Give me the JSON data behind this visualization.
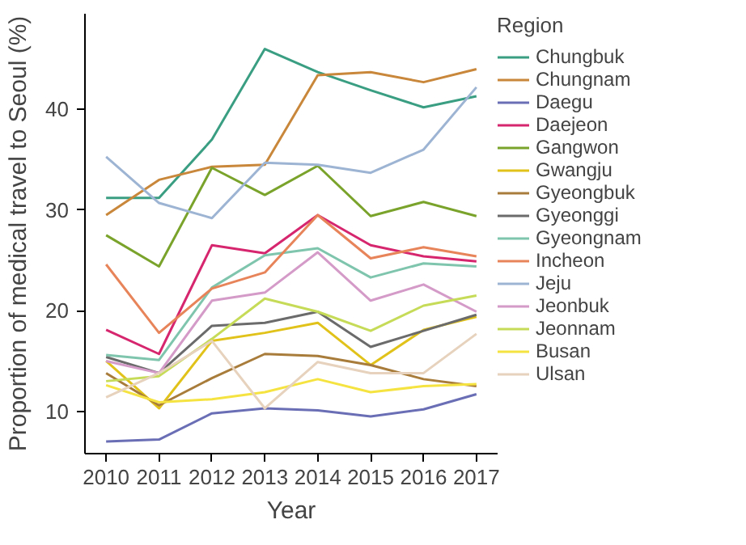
{
  "chart_data": {
    "type": "line",
    "xlabel": "Year",
    "ylabel": "Proportion of medical travel to Seoul (%)",
    "legend_title": "Region",
    "legend": "right",
    "grid": false,
    "marker": "none",
    "line_style": "solid",
    "x": [
      2010,
      2011,
      2012,
      2013,
      2014,
      2015,
      2016,
      2017
    ],
    "xlim": [
      2009.6,
      2017.4
    ],
    "xticks": [
      2010,
      2011,
      2012,
      2013,
      2014,
      2015,
      2016,
      2017
    ],
    "ylim": [
      5.8,
      49.5
    ],
    "yticks": [
      10,
      20,
      30,
      40
    ],
    "series": [
      {
        "name": "Chungbuk",
        "color": "#3a9e82",
        "values": [
          31.2,
          31.2,
          37,
          46,
          43.7,
          41.9,
          40.2,
          41.3
        ]
      },
      {
        "name": "Chungnam",
        "color": "#c8873a",
        "values": [
          29.5,
          33,
          34.3,
          34.5,
          43.4,
          43.7,
          42.7,
          44
        ]
      },
      {
        "name": "Daegu",
        "color": "#6a6fb5",
        "values": [
          7,
          7.2,
          9.8,
          10.3,
          10.1,
          9.5,
          10.2,
          11.7
        ]
      },
      {
        "name": "Daejeon",
        "color": "#d6266e",
        "values": [
          18.1,
          15.7,
          26.5,
          25.7,
          29.5,
          26.5,
          25.4,
          24.9
        ]
      },
      {
        "name": "Gangwon",
        "color": "#7aa32c",
        "values": [
          27.5,
          24.4,
          34.2,
          31.5,
          34.4,
          29.4,
          30.8,
          29.4
        ]
      },
      {
        "name": "Gwangju",
        "color": "#e0c21a",
        "values": [
          15,
          10.3,
          17,
          17.8,
          18.8,
          14.6,
          18.1,
          19.4
        ]
      },
      {
        "name": "Gyeongbuk",
        "color": "#a87c3a",
        "values": [
          13.8,
          10.6,
          13.3,
          15.7,
          15.5,
          14.6,
          13.2,
          12.5
        ]
      },
      {
        "name": "Gyeonggi",
        "color": "#6b6b6b",
        "values": [
          15.4,
          13.8,
          18.5,
          18.8,
          19.9,
          16.4,
          18,
          19.6
        ]
      },
      {
        "name": "Gyeongnam",
        "color": "#7fc5ae",
        "values": [
          15.6,
          15.1,
          22.3,
          25.5,
          26.2,
          23.3,
          24.7,
          24.4
        ]
      },
      {
        "name": "Incheon",
        "color": "#e8845a",
        "values": [
          24.6,
          17.8,
          22.2,
          23.8,
          29.5,
          25.2,
          26.3,
          25.4
        ]
      },
      {
        "name": "Jeju",
        "color": "#9db4d3",
        "values": [
          35.3,
          30.7,
          29.2,
          34.7,
          34.5,
          33.7,
          36,
          42.2
        ]
      },
      {
        "name": "Jeonbuk",
        "color": "#d49ac8",
        "values": [
          15,
          13.8,
          21,
          21.8,
          25.8,
          21,
          22.6,
          19.9
        ]
      },
      {
        "name": "Jeonnam",
        "color": "#c6dc58",
        "values": [
          13,
          13.5,
          17.2,
          21.2,
          19.9,
          18,
          20.5,
          21.5
        ]
      },
      {
        "name": "Busan",
        "color": "#f5e342",
        "values": [
          12.6,
          10.9,
          11.2,
          11.9,
          13.2,
          11.9,
          12.5,
          12.7
        ]
      },
      {
        "name": "Ulsan",
        "color": "#e6d2bd",
        "values": [
          11.4,
          13.8,
          17,
          10.3,
          14.9,
          13.8,
          13.8,
          17.7
        ]
      }
    ]
  }
}
